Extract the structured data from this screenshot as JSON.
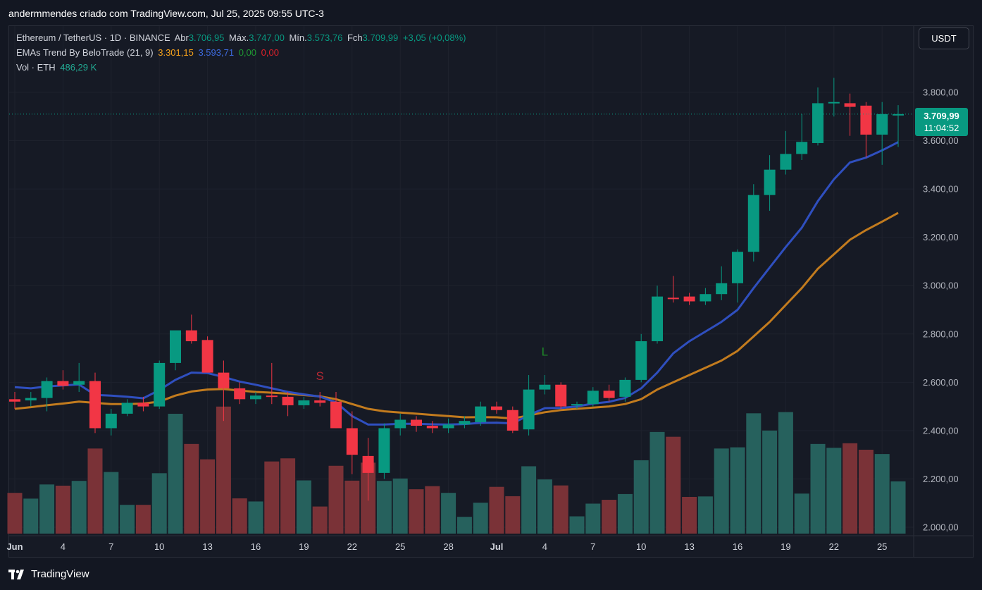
{
  "header": {
    "title": "andermmendes criado com TradingView.com, Jul 25, 2025 09:55 UTC-3"
  },
  "legend": {
    "symbol": "Ethereum / TetherUS · 1D · BINANCE",
    "open_label": "Abr",
    "open": "3.706,95",
    "high_label": "Máx.",
    "high": "3.747,00",
    "low_label": "Mín.",
    "low": "3.573,76",
    "close_label": "Fch",
    "close": "3.709,99",
    "change": "+3,05 (+0,08%)",
    "ema_name": "EMAs Trend By BeloTrade (21, 9)",
    "ema_slow": "3.301,15",
    "ema_fast": "3.593,71",
    "ema_v3": "0,00",
    "ema_v4": "0,00",
    "vol_name": "Vol · ETH",
    "vol_value": "486,29 K"
  },
  "currency_button": "USDT",
  "price_tag": {
    "price": "3.709,99",
    "countdown": "11:04:52"
  },
  "footer": {
    "brand": "TradingView"
  },
  "colors": {
    "up": "#089981",
    "down": "#f23645",
    "ema_fast": "#2f4fbf",
    "ema_slow": "#c27b1e",
    "vol_up": "#26615d",
    "vol_down": "#7a3237",
    "grid": "#1e222d",
    "background": "#161a25"
  },
  "chart_data": {
    "type": "candlestick",
    "y_axis": {
      "min": 1950,
      "max": 3900,
      "ticks": [
        "2.000,00",
        "2.200,00",
        "2.400,00",
        "2.600,00",
        "2.800,00",
        "3.000,00",
        "3.200,00",
        "3.400,00",
        "3.600,00",
        "3.800,00"
      ],
      "tick_values": [
        2000,
        2200,
        2400,
        2600,
        2800,
        3000,
        3200,
        3400,
        3600,
        3800
      ]
    },
    "x_axis": {
      "labels": [
        {
          "day": 1,
          "text": "Jun"
        },
        {
          "day": 4,
          "text": "4"
        },
        {
          "day": 7,
          "text": "7"
        },
        {
          "day": 10,
          "text": "10"
        },
        {
          "day": 13,
          "text": "13"
        },
        {
          "day": 16,
          "text": "16"
        },
        {
          "day": 19,
          "text": "19"
        },
        {
          "day": 22,
          "text": "22"
        },
        {
          "day": 25,
          "text": "25"
        },
        {
          "day": 28,
          "text": "28"
        },
        {
          "day": 31,
          "text": "Jul"
        },
        {
          "day": 34,
          "text": "4"
        },
        {
          "day": 37,
          "text": "7"
        },
        {
          "day": 40,
          "text": "10"
        },
        {
          "day": 43,
          "text": "13"
        },
        {
          "day": 46,
          "text": "16"
        },
        {
          "day": 49,
          "text": "19"
        },
        {
          "day": 52,
          "text": "22"
        },
        {
          "day": 55,
          "text": "25"
        }
      ]
    },
    "candles": [
      {
        "o": 2530,
        "h": 2560,
        "l": 2490,
        "c": 2520
      },
      {
        "o": 2525,
        "h": 2560,
        "l": 2500,
        "c": 2535
      },
      {
        "o": 2535,
        "h": 2620,
        "l": 2480,
        "c": 2605
      },
      {
        "o": 2605,
        "h": 2650,
        "l": 2570,
        "c": 2585
      },
      {
        "o": 2590,
        "h": 2680,
        "l": 2560,
        "c": 2605
      },
      {
        "o": 2605,
        "h": 2640,
        "l": 2390,
        "c": 2410
      },
      {
        "o": 2410,
        "h": 2490,
        "l": 2380,
        "c": 2470
      },
      {
        "o": 2470,
        "h": 2530,
        "l": 2460,
        "c": 2515
      },
      {
        "o": 2515,
        "h": 2540,
        "l": 2480,
        "c": 2500
      },
      {
        "o": 2500,
        "h": 2690,
        "l": 2490,
        "c": 2680
      },
      {
        "o": 2680,
        "h": 2800,
        "l": 2650,
        "c": 2815
      },
      {
        "o": 2815,
        "h": 2880,
        "l": 2760,
        "c": 2770
      },
      {
        "o": 2775,
        "h": 2790,
        "l": 2640,
        "c": 2640
      },
      {
        "o": 2640,
        "h": 2690,
        "l": 2440,
        "c": 2575
      },
      {
        "o": 2575,
        "h": 2600,
        "l": 2510,
        "c": 2530
      },
      {
        "o": 2530,
        "h": 2560,
        "l": 2510,
        "c": 2545
      },
      {
        "o": 2545,
        "h": 2680,
        "l": 2510,
        "c": 2540
      },
      {
        "o": 2540,
        "h": 2560,
        "l": 2460,
        "c": 2505
      },
      {
        "o": 2505,
        "h": 2540,
        "l": 2490,
        "c": 2525
      },
      {
        "o": 2525,
        "h": 2560,
        "l": 2500,
        "c": 2515
      },
      {
        "o": 2520,
        "h": 2560,
        "l": 2410,
        "c": 2410
      },
      {
        "o": 2410,
        "h": 2480,
        "l": 2220,
        "c": 2300
      },
      {
        "o": 2295,
        "h": 2370,
        "l": 2110,
        "c": 2225
      },
      {
        "o": 2225,
        "h": 2430,
        "l": 2200,
        "c": 2410
      },
      {
        "o": 2410,
        "h": 2470,
        "l": 2380,
        "c": 2445
      },
      {
        "o": 2445,
        "h": 2460,
        "l": 2395,
        "c": 2420
      },
      {
        "o": 2420,
        "h": 2440,
        "l": 2390,
        "c": 2410
      },
      {
        "o": 2410,
        "h": 2450,
        "l": 2390,
        "c": 2425
      },
      {
        "o": 2425,
        "h": 2460,
        "l": 2410,
        "c": 2440
      },
      {
        "o": 2435,
        "h": 2520,
        "l": 2420,
        "c": 2500
      },
      {
        "o": 2500,
        "h": 2520,
        "l": 2470,
        "c": 2485
      },
      {
        "o": 2485,
        "h": 2500,
        "l": 2390,
        "c": 2400
      },
      {
        "o": 2405,
        "h": 2630,
        "l": 2380,
        "c": 2570
      },
      {
        "o": 2570,
        "h": 2630,
        "l": 2550,
        "c": 2590
      },
      {
        "o": 2590,
        "h": 2600,
        "l": 2490,
        "c": 2500
      },
      {
        "o": 2505,
        "h": 2520,
        "l": 2490,
        "c": 2510
      },
      {
        "o": 2510,
        "h": 2580,
        "l": 2500,
        "c": 2565
      },
      {
        "o": 2565,
        "h": 2590,
        "l": 2520,
        "c": 2535
      },
      {
        "o": 2540,
        "h": 2620,
        "l": 2520,
        "c": 2610
      },
      {
        "o": 2610,
        "h": 2800,
        "l": 2600,
        "c": 2770
      },
      {
        "o": 2770,
        "h": 3000,
        "l": 2760,
        "c": 2955
      },
      {
        "o": 2950,
        "h": 3040,
        "l": 2930,
        "c": 2945
      },
      {
        "o": 2955,
        "h": 2970,
        "l": 2920,
        "c": 2935
      },
      {
        "o": 2935,
        "h": 2990,
        "l": 2920,
        "c": 2965
      },
      {
        "o": 2965,
        "h": 3080,
        "l": 2940,
        "c": 3010
      },
      {
        "o": 3010,
        "h": 3150,
        "l": 2930,
        "c": 3140
      },
      {
        "o": 3140,
        "h": 3420,
        "l": 3100,
        "c": 3375
      },
      {
        "o": 3375,
        "h": 3540,
        "l": 3310,
        "c": 3480
      },
      {
        "o": 3480,
        "h": 3640,
        "l": 3460,
        "c": 3545
      },
      {
        "o": 3545,
        "h": 3710,
        "l": 3520,
        "c": 3595
      },
      {
        "o": 3590,
        "h": 3820,
        "l": 3580,
        "c": 3755
      },
      {
        "o": 3755,
        "h": 3860,
        "l": 3700,
        "c": 3760
      },
      {
        "o": 3755,
        "h": 3795,
        "l": 3620,
        "c": 3740
      },
      {
        "o": 3745,
        "h": 3760,
        "l": 3530,
        "c": 3625
      },
      {
        "o": 3625,
        "h": 3760,
        "l": 3500,
        "c": 3710
      },
      {
        "o": 3707,
        "h": 3747,
        "l": 3574,
        "c": 3710
      }
    ],
    "volume_scale_max": 3000,
    "volumes": [
      1700,
      1460,
      2050,
      2000,
      2200,
      3550,
      2570,
      1200,
      1200,
      2520,
      5000,
      3740,
      3100,
      5300,
      1470,
      1340,
      3010,
      3140,
      2220,
      1130,
      2830,
      2210,
      2960,
      2200,
      2300,
      1850,
      1980,
      1700,
      700,
      1290,
      1950,
      1560,
      2810,
      2260,
      2010,
      720,
      1250,
      1410,
      1650,
      3060,
      4240,
      4040,
      1530,
      1550,
      3550,
      3600,
      5020,
      4300,
      5070,
      1670,
      3740,
      3580,
      3770,
      3500,
      3320,
      2180
    ],
    "ema_fast": [
      2580,
      2575,
      2583,
      2587,
      2591,
      2548,
      2545,
      2540,
      2534,
      2568,
      2610,
      2640,
      2638,
      2622,
      2603,
      2590,
      2575,
      2560,
      2550,
      2541,
      2517,
      2460,
      2425,
      2425,
      2428,
      2428,
      2426,
      2425,
      2427,
      2432,
      2433,
      2430,
      2464,
      2493,
      2494,
      2500,
      2512,
      2519,
      2535,
      2575,
      2640,
      2720,
      2770,
      2810,
      2850,
      2900,
      2990,
      3075,
      3160,
      3240,
      3350,
      3440,
      3510,
      3530,
      3560,
      3594
    ],
    "ema_slow": [
      2490,
      2497,
      2505,
      2512,
      2520,
      2515,
      2510,
      2510,
      2512,
      2520,
      2545,
      2562,
      2570,
      2572,
      2566,
      2560,
      2557,
      2553,
      2547,
      2542,
      2530,
      2510,
      2490,
      2480,
      2475,
      2470,
      2465,
      2460,
      2455,
      2456,
      2455,
      2450,
      2463,
      2476,
      2485,
      2490,
      2495,
      2500,
      2510,
      2530,
      2570,
      2600,
      2630,
      2660,
      2690,
      2730,
      2790,
      2850,
      2920,
      2990,
      3070,
      3130,
      3190,
      3230,
      3265,
      3301
    ],
    "markers": [
      {
        "index": 19,
        "value": 2610,
        "text": "S",
        "color": "#b22833"
      },
      {
        "index": 33,
        "value": 2710,
        "text": "L",
        "color": "#1e8a28"
      }
    ],
    "last_price_line": 3709.99
  }
}
